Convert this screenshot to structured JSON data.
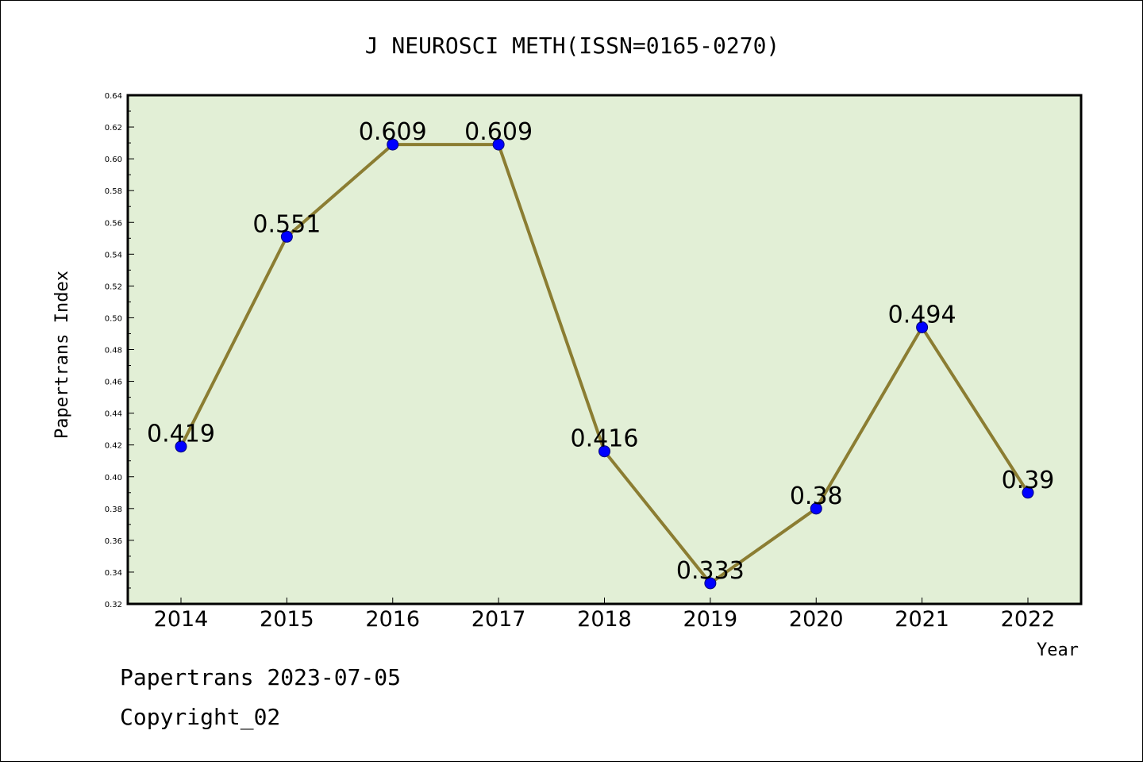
{
  "chart_data": {
    "type": "line",
    "title": "J NEUROSCI METH(ISSN=0165-0270)",
    "xlabel": "Year",
    "ylabel": "Papertrans Index",
    "categories": [
      "2014",
      "2015",
      "2016",
      "2017",
      "2018",
      "2019",
      "2020",
      "2021",
      "2022"
    ],
    "values": [
      0.419,
      0.551,
      0.609,
      0.609,
      0.416,
      0.333,
      0.38,
      0.494,
      0.39
    ],
    "data_labels": [
      "0.419",
      "0.551",
      "0.609",
      "0.609",
      "0.416",
      "0.333",
      "0.38",
      "0.494",
      "0.39"
    ],
    "ylim": [
      0.32,
      0.64
    ],
    "yticks": [
      "0.32",
      "0.34",
      "0.36",
      "0.38",
      "0.40",
      "0.42",
      "0.44",
      "0.46",
      "0.48",
      "0.50",
      "0.52",
      "0.54",
      "0.56",
      "0.58",
      "0.60",
      "0.62",
      "0.64"
    ],
    "grid": false,
    "legend": "none",
    "colors": {
      "plot_background": "#e2efd6",
      "line": "#8b7d32",
      "marker": "#0000ff"
    }
  },
  "footer": {
    "date_line": "Papertrans 2023-07-05",
    "copyright": "Copyright_02"
  }
}
